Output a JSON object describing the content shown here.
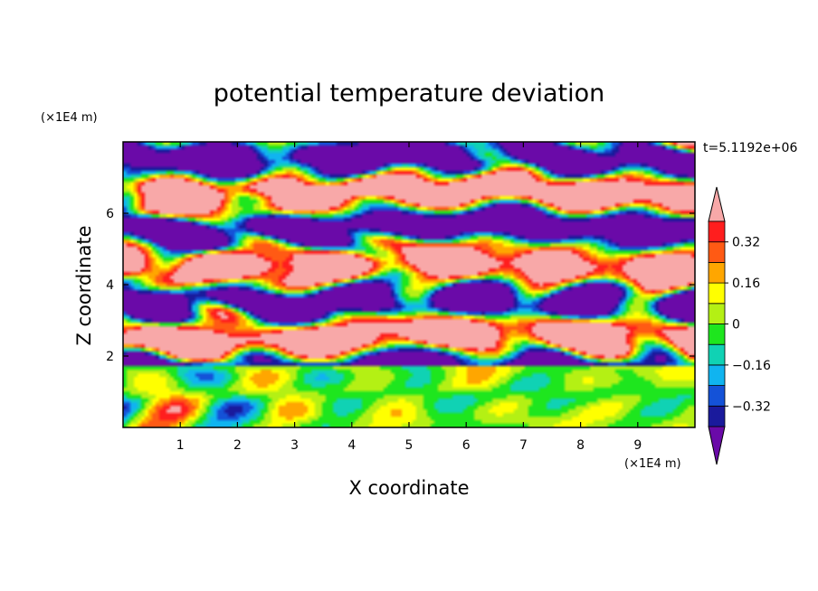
{
  "chart_data": {
    "type": "heatmap",
    "title": "potential temperature deviation",
    "xlabel": "X coordinate",
    "ylabel": "Z coordinate",
    "x_unit": "(×1E4 m)",
    "y_unit": "(×1E4 m)",
    "time_label": "t=5.1192e+06",
    "xlim": [
      0,
      10
    ],
    "ylim": [
      0,
      8
    ],
    "x_ticks": [
      "1",
      "2",
      "3",
      "4",
      "5",
      "6",
      "7",
      "8",
      "9"
    ],
    "y_ticks": [
      "2",
      "4",
      "6"
    ],
    "colorbar": {
      "levels": [
        -0.4,
        -0.32,
        -0.24,
        -0.16,
        -0.08,
        0,
        0.08,
        0.16,
        0.24,
        0.32,
        0.4
      ],
      "labels": [
        "0.32",
        "0.16",
        "0",
        "−0.16",
        "−0.32"
      ],
      "colors": [
        "#6a0aa8",
        "#1a1a9c",
        "#1452d8",
        "#10b4f0",
        "#10d2b4",
        "#1ee61e",
        "#b4f014",
        "#ffff00",
        "#ffa600",
        "#ff5a14",
        "#ff1e1e",
        "#f8a8a8"
      ]
    }
  }
}
